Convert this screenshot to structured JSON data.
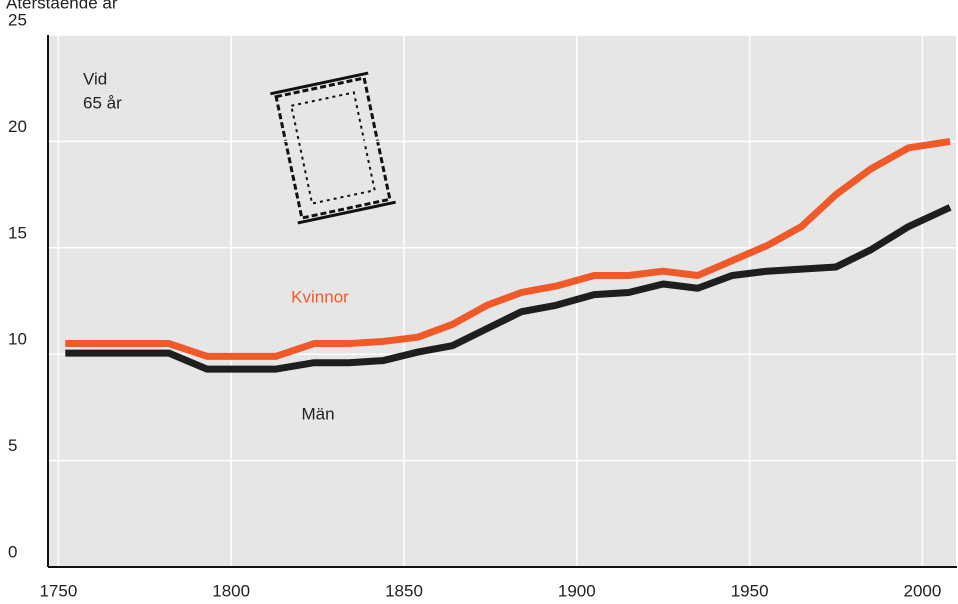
{
  "chart_data": {
    "type": "line",
    "title": "Återstående år",
    "annotations": [
      "Vid",
      "65 år"
    ],
    "x": [
      1752,
      1782,
      1793,
      1813,
      1824,
      1834,
      1844,
      1854,
      1864,
      1874,
      1884,
      1894,
      1905,
      1915,
      1925,
      1935,
      1945,
      1955,
      1965,
      1975,
      1985,
      1996,
      2008
    ],
    "series": [
      {
        "name": "Kvinnor",
        "color": "#f05a28",
        "values": [
          10.5,
          10.5,
          9.9,
          9.9,
          10.5,
          10.5,
          10.6,
          10.8,
          11.4,
          12.3,
          12.9,
          13.2,
          13.7,
          13.7,
          13.9,
          13.7,
          14.4,
          15.1,
          16.0,
          17.5,
          18.7,
          19.7,
          20.0
        ]
      },
      {
        "name": "Män",
        "color": "#1e1e1e",
        "values": [
          10.05,
          10.05,
          9.3,
          9.3,
          9.6,
          9.6,
          9.7,
          10.1,
          10.4,
          11.2,
          12.0,
          12.3,
          12.8,
          12.9,
          13.3,
          13.1,
          13.7,
          13.9,
          14.0,
          14.1,
          14.9,
          16.0,
          16.9
        ]
      }
    ],
    "xlim": [
      1747,
      2010
    ],
    "xticks": [
      1750,
      1800,
      1850,
      1900,
      1950,
      2000
    ],
    "ylim": [
      0,
      25
    ],
    "yticks": [
      0,
      5,
      10,
      15,
      20,
      25
    ],
    "grid": true
  }
}
